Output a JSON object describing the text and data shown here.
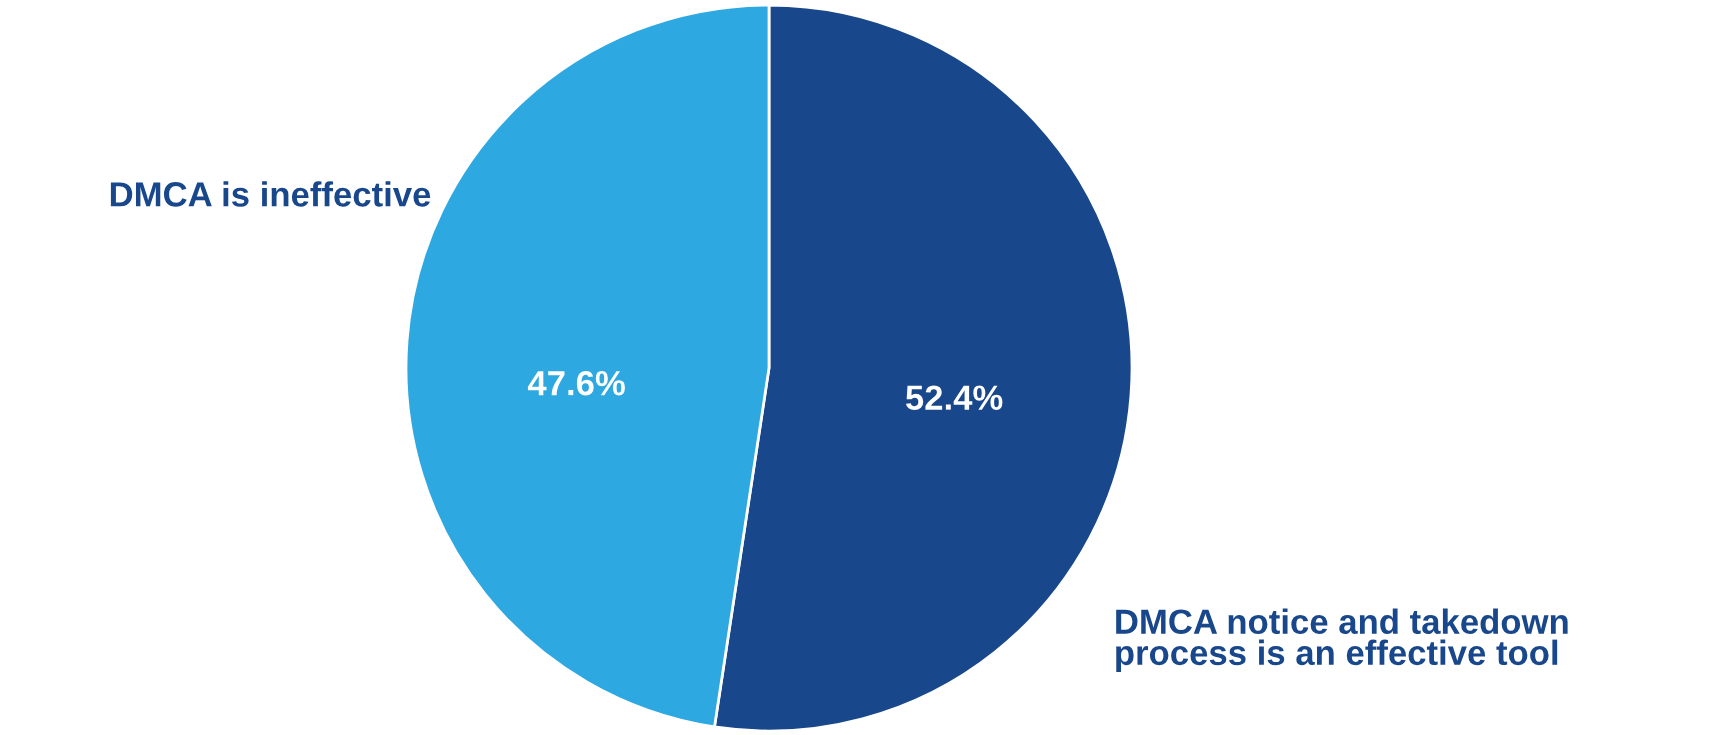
{
  "chart_data": {
    "type": "pie",
    "categories": [
      "DMCA notice and takedown\nprocess is an effective tool",
      "DMCA is ineffective"
    ],
    "values": [
      52.4,
      47.6
    ],
    "colors": [
      "#18478b",
      "#2ea8e0"
    ],
    "value_labels": [
      "52.4%",
      "47.6%"
    ],
    "legend": false
  }
}
